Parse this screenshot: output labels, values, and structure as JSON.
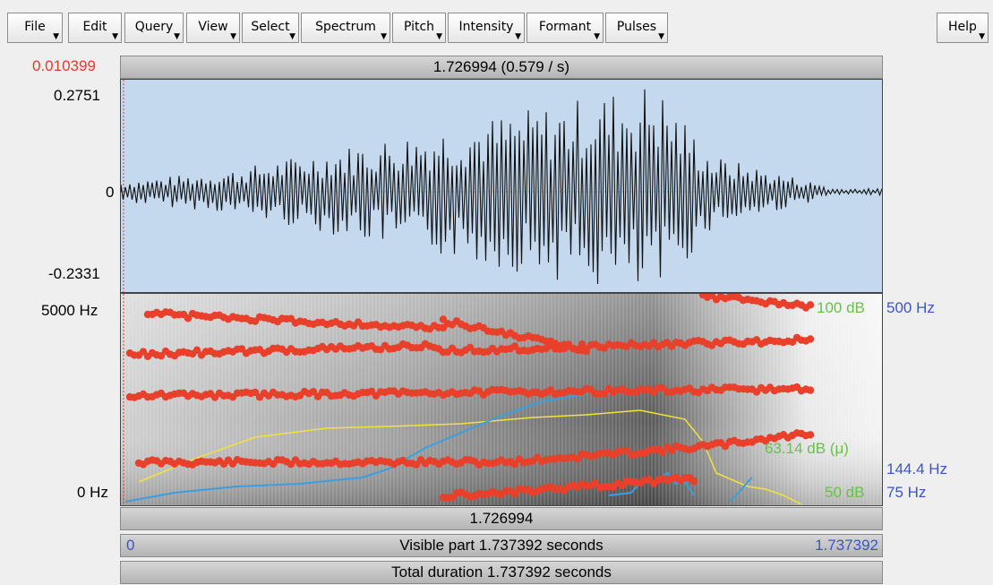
{
  "menu": {
    "items": [
      "File",
      "Edit",
      "Query",
      "View",
      "Select",
      "Spectrum",
      "Pitch",
      "Intensity",
      "Formant",
      "Pulses"
    ],
    "help": "Help"
  },
  "cursor": {
    "left_time": "0.010399",
    "top_label": "1.726994 (0.579 / s)",
    "bottom_label": "1.726994"
  },
  "waveform": {
    "ymax": "0.2751",
    "zero": "0",
    "ymin": "-0.2331"
  },
  "spectrogram": {
    "freq_top": "5000 Hz",
    "freq_bottom": "0 Hz",
    "intensity_top": "100 dB",
    "intensity_mean": "63.14 dB (μ)",
    "intensity_bottom": "50 dB",
    "pitch_top": "500 Hz",
    "pitch_mid": "144.4 Hz",
    "pitch_bottom": "75 Hz"
  },
  "timebar": {
    "start": "0",
    "visible": "Visible part 1.737392 seconds",
    "end": "1.737392",
    "total": "Total duration 1.737392 seconds"
  },
  "colors": {
    "cursor_red": "#e33b2c",
    "pitch_blue": "#3b55c8",
    "intensity_green": "#66c24a",
    "formant_red": "#e8402a",
    "wave_bg": "#c4d8ee"
  },
  "icons": [
    "dropdown-caret-icon"
  ]
}
